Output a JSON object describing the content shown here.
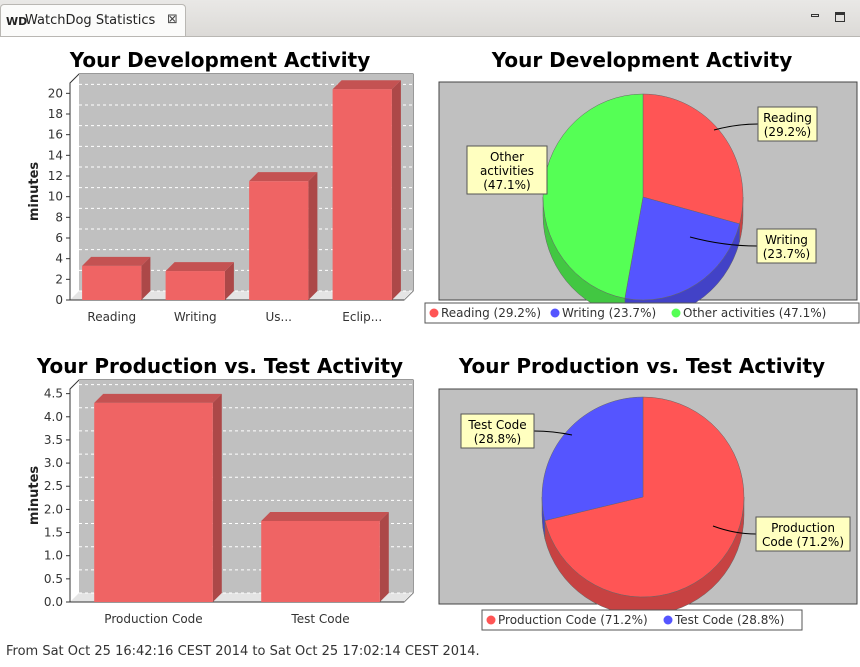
{
  "tab": {
    "icon": "WD",
    "title": "WatchDog Statistics",
    "close_icon": "close-icon"
  },
  "window_controls": {
    "minimize_icon": "minimize-icon",
    "maximize_icon": "maximize-icon"
  },
  "footer": {
    "text": "From Sat Oct 25 16:42:16 CEST 2014 to Sat Oct 25 17:02:14 CEST 2014."
  },
  "colors": {
    "bar": "#ef6464",
    "red": "#ff5555",
    "blue": "#5555ff",
    "green": "#55ff55",
    "plot_bg": "#c0c0c0"
  },
  "chart_data": [
    {
      "type": "bar",
      "title": "Your Development Activity",
      "categories": [
        "Reading",
        "Writing",
        "Us...",
        "Eclip..."
      ],
      "values": [
        3.3,
        2.8,
        11.5,
        20.4
      ],
      "xlabel": "",
      "ylabel": "minutes",
      "ylim": [
        0,
        21
      ],
      "yticks": [
        0,
        2,
        4,
        6,
        8,
        10,
        12,
        14,
        16,
        18,
        20
      ],
      "ytick_labels": [
        "0",
        "2",
        "4",
        "6",
        "8",
        "10",
        "12",
        "14",
        "16",
        "18",
        "20"
      ],
      "grid": true
    },
    {
      "type": "pie",
      "title": "Your Development Activity",
      "labels": [
        "Reading (29.2%)",
        "Writing (23.7%)",
        "Other activities (47.1%)"
      ],
      "values": [
        29.2,
        23.7,
        47.1
      ],
      "colors": [
        "#ff5555",
        "#5555ff",
        "#55ff55"
      ],
      "callouts": [
        [
          "Reading",
          "(29.2%)"
        ],
        [
          "Writing",
          "(23.7%)"
        ],
        [
          "Other",
          "activities",
          "(47.1%)"
        ]
      ],
      "legend": "bottom"
    },
    {
      "type": "bar",
      "title": "Your Production vs. Test Activity",
      "categories": [
        "Production Code",
        "Test Code"
      ],
      "values": [
        4.3,
        1.75
      ],
      "xlabel": "",
      "ylabel": "minutes",
      "ylim": [
        0,
        4.6
      ],
      "yticks": [
        0,
        0.5,
        1,
        1.5,
        2,
        2.5,
        3,
        3.5,
        4,
        4.5
      ],
      "ytick_labels": [
        "0.0",
        "0.5",
        "1.0",
        "1.5",
        "2.0",
        "2.5",
        "3.0",
        "3.5",
        "4.0",
        "4.5"
      ],
      "grid": true
    },
    {
      "type": "pie",
      "title": "Your Production vs. Test Activity",
      "labels": [
        "Production Code (71.2%)",
        "Test Code (28.8%)"
      ],
      "values": [
        71.2,
        28.8
      ],
      "colors": [
        "#ff5555",
        "#5555ff"
      ],
      "callouts": [
        [
          "Production",
          "Code (71.2%)"
        ],
        [
          "Test Code",
          "(28.8%)"
        ]
      ],
      "legend": "bottom"
    }
  ]
}
